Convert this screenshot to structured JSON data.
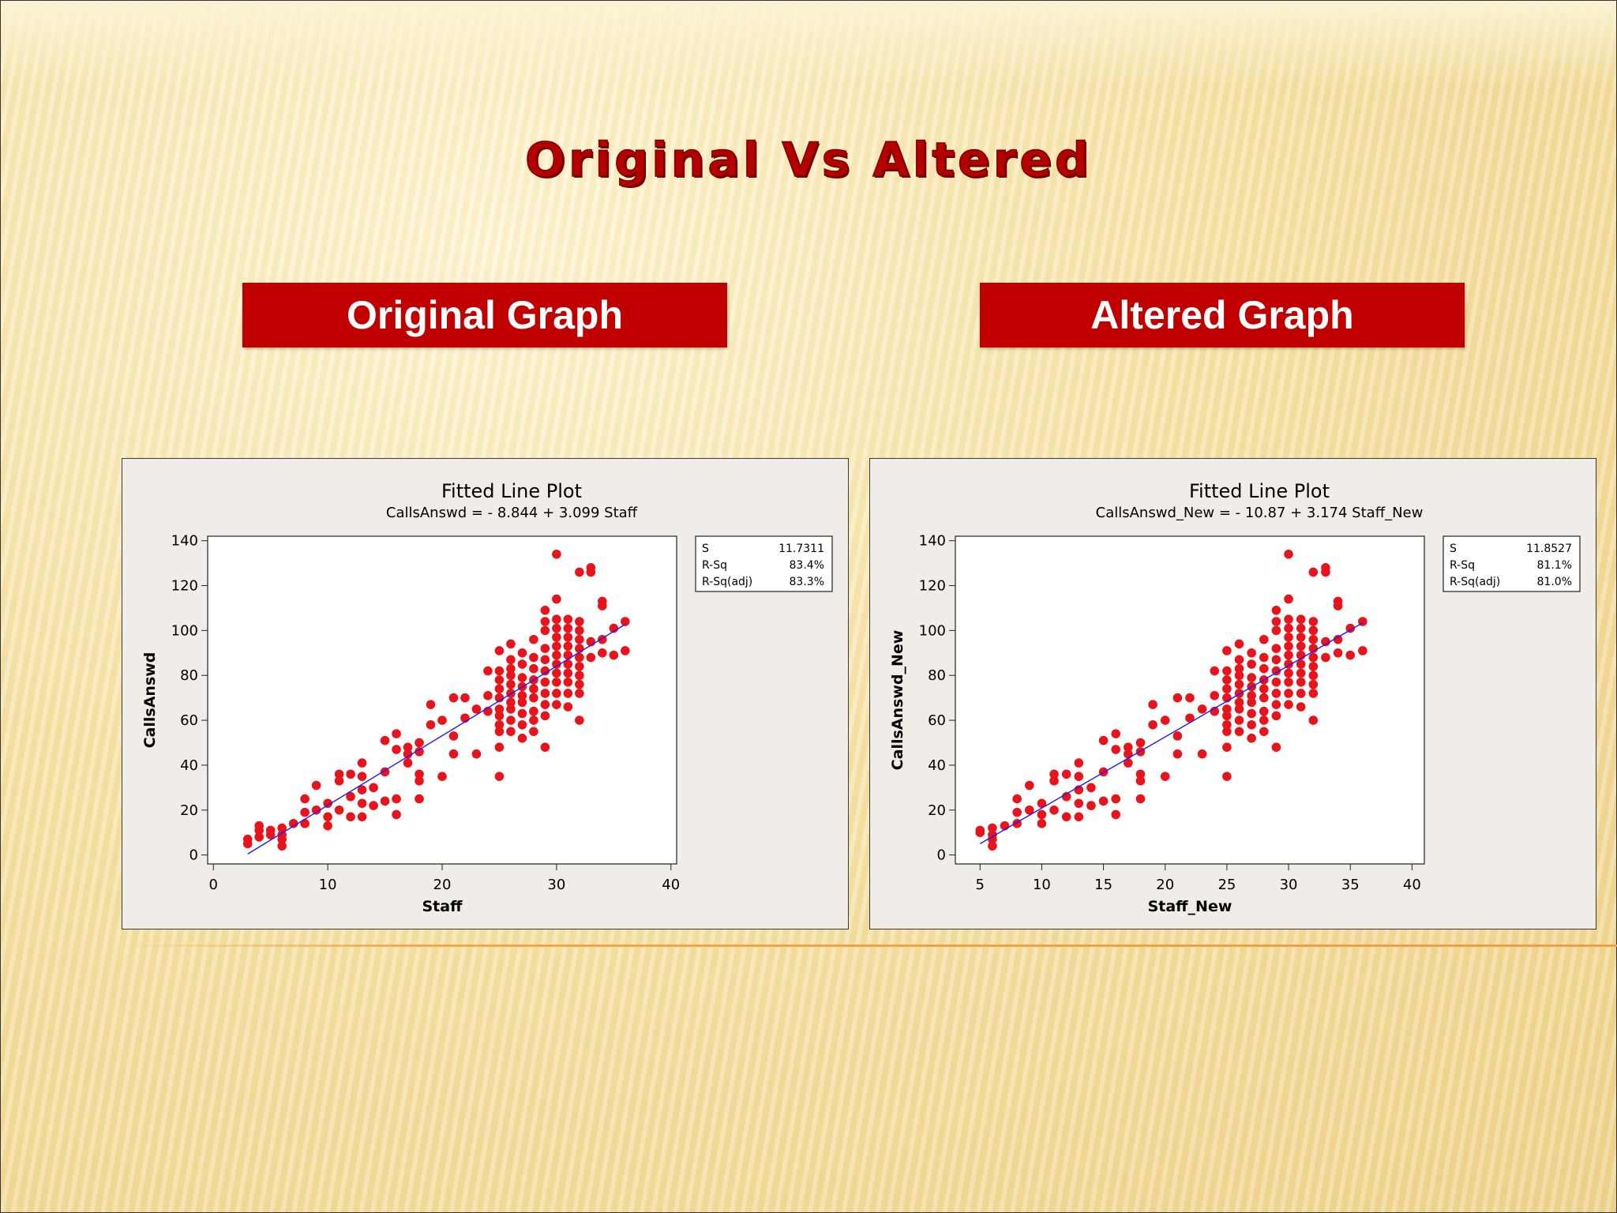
{
  "slide": {
    "title": "Original Vs Altered",
    "left_label": "Original Graph",
    "right_label": "Altered Graph"
  },
  "colors": {
    "title": "#b50000",
    "label_box": "#c00000",
    "points": "#e8141c",
    "fit_line": "#1a1aff",
    "divider": "#f0a040"
  },
  "chart_data": [
    {
      "type": "scatter",
      "title": "Fitted Line Plot",
      "subtitle": "CallsAnswd =  - 8.844 + 3.099 Staff",
      "xlabel": "Staff",
      "ylabel": "CallsAnswd",
      "xlim": [
        -0.5,
        40.5
      ],
      "ylim": [
        -4,
        142
      ],
      "xticks": [
        0,
        10,
        20,
        30,
        40
      ],
      "yticks": [
        0,
        20,
        40,
        60,
        80,
        100,
        120,
        140
      ],
      "fit": {
        "intercept": -8.844,
        "slope": 3.099,
        "x_range": [
          3,
          36
        ]
      },
      "stats": [
        {
          "label": "S",
          "value": "11.7311"
        },
        {
          "label": "R-Sq",
          "value": "83.4%"
        },
        {
          "label": "R-Sq(adj)",
          "value": "83.3%"
        }
      ],
      "points": [
        [
          3,
          5
        ],
        [
          3,
          7
        ],
        [
          4,
          8
        ],
        [
          4,
          11
        ],
        [
          4,
          13
        ],
        [
          5,
          9
        ],
        [
          5,
          11
        ],
        [
          6,
          4
        ],
        [
          6,
          7
        ],
        [
          6,
          9
        ],
        [
          6,
          12
        ],
        [
          7,
          14
        ],
        [
          8,
          14
        ],
        [
          8,
          19
        ],
        [
          8,
          25
        ],
        [
          9,
          20
        ],
        [
          9,
          31
        ],
        [
          10,
          13
        ],
        [
          10,
          17
        ],
        [
          10,
          23
        ],
        [
          11,
          20
        ],
        [
          11,
          33
        ],
        [
          11,
          36
        ],
        [
          12,
          17
        ],
        [
          12,
          26
        ],
        [
          12,
          36
        ],
        [
          13,
          17
        ],
        [
          13,
          23
        ],
        [
          13,
          29
        ],
        [
          13,
          35
        ],
        [
          13,
          41
        ],
        [
          14,
          22
        ],
        [
          14,
          30
        ],
        [
          15,
          24
        ],
        [
          15,
          37
        ],
        [
          15,
          51
        ],
        [
          16,
          18
        ],
        [
          16,
          25
        ],
        [
          16,
          47
        ],
        [
          16,
          54
        ],
        [
          17,
          41
        ],
        [
          17,
          45
        ],
        [
          17,
          48
        ],
        [
          18,
          25
        ],
        [
          18,
          33
        ],
        [
          18,
          36
        ],
        [
          18,
          46
        ],
        [
          18,
          50
        ],
        [
          19,
          58
        ],
        [
          19,
          67
        ],
        [
          20,
          35
        ],
        [
          20,
          60
        ],
        [
          21,
          45
        ],
        [
          21,
          53
        ],
        [
          21,
          70
        ],
        [
          22,
          61
        ],
        [
          22,
          70
        ],
        [
          23,
          45
        ],
        [
          23,
          65
        ],
        [
          24,
          64
        ],
        [
          24,
          71
        ],
        [
          24,
          82
        ],
        [
          25,
          35
        ],
        [
          25,
          48
        ],
        [
          25,
          55
        ],
        [
          25,
          58
        ],
        [
          25,
          62
        ],
        [
          25,
          65
        ],
        [
          25,
          70
        ],
        [
          25,
          74
        ],
        [
          25,
          78
        ],
        [
          25,
          82
        ],
        [
          25,
          91
        ],
        [
          26,
          55
        ],
        [
          26,
          60
        ],
        [
          26,
          65
        ],
        [
          26,
          68
        ],
        [
          26,
          72
        ],
        [
          26,
          76
        ],
        [
          26,
          80
        ],
        [
          26,
          83
        ],
        [
          26,
          87
        ],
        [
          26,
          94
        ],
        [
          27,
          52
        ],
        [
          27,
          58
        ],
        [
          27,
          63
        ],
        [
          27,
          68
        ],
        [
          27,
          71
        ],
        [
          27,
          75
        ],
        [
          27,
          79
        ],
        [
          27,
          85
        ],
        [
          27,
          90
        ],
        [
          28,
          55
        ],
        [
          28,
          60
        ],
        [
          28,
          64
        ],
        [
          28,
          70
        ],
        [
          28,
          74
        ],
        [
          28,
          78
        ],
        [
          28,
          83
        ],
        [
          28,
          88
        ],
        [
          28,
          96
        ],
        [
          29,
          48
        ],
        [
          29,
          62
        ],
        [
          29,
          67
        ],
        [
          29,
          72
        ],
        [
          29,
          77
        ],
        [
          29,
          82
        ],
        [
          29,
          87
        ],
        [
          29,
          92
        ],
        [
          29,
          100
        ],
        [
          29,
          104
        ],
        [
          29,
          109
        ],
        [
          30,
          67
        ],
        [
          30,
          72
        ],
        [
          30,
          77
        ],
        [
          30,
          81
        ],
        [
          30,
          85
        ],
        [
          30,
          89
        ],
        [
          30,
          93
        ],
        [
          30,
          97
        ],
        [
          30,
          101
        ],
        [
          30,
          105
        ],
        [
          30,
          114
        ],
        [
          30,
          134
        ],
        [
          31,
          66
        ],
        [
          31,
          72
        ],
        [
          31,
          77
        ],
        [
          31,
          81
        ],
        [
          31,
          85
        ],
        [
          31,
          89
        ],
        [
          31,
          93
        ],
        [
          31,
          97
        ],
        [
          31,
          101
        ],
        [
          31,
          105
        ],
        [
          32,
          60
        ],
        [
          32,
          72
        ],
        [
          32,
          76
        ],
        [
          32,
          80
        ],
        [
          32,
          84
        ],
        [
          32,
          88
        ],
        [
          32,
          92
        ],
        [
          32,
          96
        ],
        [
          32,
          100
        ],
        [
          32,
          104
        ],
        [
          32,
          126
        ],
        [
          33,
          88
        ],
        [
          33,
          95
        ],
        [
          33,
          128
        ],
        [
          33,
          126
        ],
        [
          34,
          90
        ],
        [
          34,
          96
        ],
        [
          34,
          111
        ],
        [
          34,
          113
        ],
        [
          35,
          89
        ],
        [
          35,
          101
        ],
        [
          36,
          91
        ],
        [
          36,
          104
        ]
      ]
    },
    {
      "type": "scatter",
      "title": "Fitted Line Plot",
      "subtitle": "CallsAnswd_New =  - 10.87 + 3.174 Staff_New",
      "xlabel": "Staff_New",
      "ylabel": "CallsAnswd_New",
      "xlim": [
        3,
        41
      ],
      "ylim": [
        -4,
        142
      ],
      "xticks": [
        5,
        10,
        15,
        20,
        25,
        30,
        35,
        40
      ],
      "yticks": [
        0,
        20,
        40,
        60,
        80,
        100,
        120,
        140
      ],
      "fit": {
        "intercept": -10.87,
        "slope": 3.174,
        "x_range": [
          5,
          36
        ]
      },
      "stats": [
        {
          "label": "S",
          "value": "11.8527"
        },
        {
          "label": "R-Sq",
          "value": "81.1%"
        },
        {
          "label": "R-Sq(adj)",
          "value": "81.0%"
        }
      ],
      "points": [
        [
          5,
          10
        ],
        [
          5,
          11
        ],
        [
          6,
          4
        ],
        [
          6,
          7
        ],
        [
          6,
          9
        ],
        [
          6,
          12
        ],
        [
          7,
          13
        ],
        [
          8,
          14
        ],
        [
          8,
          19
        ],
        [
          8,
          25
        ],
        [
          9,
          20
        ],
        [
          9,
          31
        ],
        [
          10,
          14
        ],
        [
          10,
          18
        ],
        [
          10,
          23
        ],
        [
          11,
          20
        ],
        [
          11,
          33
        ],
        [
          11,
          36
        ],
        [
          12,
          17
        ],
        [
          12,
          26
        ],
        [
          12,
          36
        ],
        [
          13,
          17
        ],
        [
          13,
          23
        ],
        [
          13,
          29
        ],
        [
          13,
          35
        ],
        [
          13,
          41
        ],
        [
          14,
          22
        ],
        [
          14,
          30
        ],
        [
          15,
          24
        ],
        [
          15,
          37
        ],
        [
          15,
          51
        ],
        [
          16,
          18
        ],
        [
          16,
          25
        ],
        [
          16,
          47
        ],
        [
          16,
          54
        ],
        [
          17,
          41
        ],
        [
          17,
          45
        ],
        [
          17,
          48
        ],
        [
          18,
          25
        ],
        [
          18,
          33
        ],
        [
          18,
          36
        ],
        [
          18,
          46
        ],
        [
          18,
          50
        ],
        [
          19,
          58
        ],
        [
          19,
          67
        ],
        [
          20,
          35
        ],
        [
          20,
          60
        ],
        [
          21,
          45
        ],
        [
          21,
          53
        ],
        [
          21,
          70
        ],
        [
          22,
          61
        ],
        [
          22,
          70
        ],
        [
          23,
          45
        ],
        [
          23,
          65
        ],
        [
          24,
          64
        ],
        [
          24,
          71
        ],
        [
          24,
          82
        ],
        [
          25,
          35
        ],
        [
          25,
          48
        ],
        [
          25,
          55
        ],
        [
          25,
          58
        ],
        [
          25,
          62
        ],
        [
          25,
          65
        ],
        [
          25,
          70
        ],
        [
          25,
          74
        ],
        [
          25,
          78
        ],
        [
          25,
          82
        ],
        [
          25,
          91
        ],
        [
          26,
          55
        ],
        [
          26,
          60
        ],
        [
          26,
          65
        ],
        [
          26,
          68
        ],
        [
          26,
          72
        ],
        [
          26,
          76
        ],
        [
          26,
          80
        ],
        [
          26,
          83
        ],
        [
          26,
          87
        ],
        [
          26,
          94
        ],
        [
          27,
          52
        ],
        [
          27,
          58
        ],
        [
          27,
          63
        ],
        [
          27,
          68
        ],
        [
          27,
          71
        ],
        [
          27,
          75
        ],
        [
          27,
          79
        ],
        [
          27,
          85
        ],
        [
          27,
          90
        ],
        [
          28,
          55
        ],
        [
          28,
          60
        ],
        [
          28,
          64
        ],
        [
          28,
          70
        ],
        [
          28,
          74
        ],
        [
          28,
          78
        ],
        [
          28,
          83
        ],
        [
          28,
          88
        ],
        [
          28,
          96
        ],
        [
          29,
          48
        ],
        [
          29,
          62
        ],
        [
          29,
          67
        ],
        [
          29,
          72
        ],
        [
          29,
          77
        ],
        [
          29,
          82
        ],
        [
          29,
          87
        ],
        [
          29,
          92
        ],
        [
          29,
          100
        ],
        [
          29,
          104
        ],
        [
          29,
          109
        ],
        [
          30,
          67
        ],
        [
          30,
          72
        ],
        [
          30,
          77
        ],
        [
          30,
          81
        ],
        [
          30,
          85
        ],
        [
          30,
          89
        ],
        [
          30,
          93
        ],
        [
          30,
          97
        ],
        [
          30,
          101
        ],
        [
          30,
          105
        ],
        [
          30,
          114
        ],
        [
          30,
          134
        ],
        [
          31,
          66
        ],
        [
          31,
          72
        ],
        [
          31,
          77
        ],
        [
          31,
          81
        ],
        [
          31,
          85
        ],
        [
          31,
          89
        ],
        [
          31,
          93
        ],
        [
          31,
          97
        ],
        [
          31,
          101
        ],
        [
          31,
          105
        ],
        [
          32,
          60
        ],
        [
          32,
          72
        ],
        [
          32,
          76
        ],
        [
          32,
          80
        ],
        [
          32,
          84
        ],
        [
          32,
          88
        ],
        [
          32,
          92
        ],
        [
          32,
          96
        ],
        [
          32,
          100
        ],
        [
          32,
          104
        ],
        [
          32,
          126
        ],
        [
          33,
          88
        ],
        [
          33,
          95
        ],
        [
          33,
          128
        ],
        [
          33,
          126
        ],
        [
          34,
          90
        ],
        [
          34,
          96
        ],
        [
          34,
          111
        ],
        [
          34,
          113
        ],
        [
          35,
          89
        ],
        [
          35,
          101
        ],
        [
          36,
          91
        ],
        [
          36,
          104
        ]
      ]
    }
  ]
}
